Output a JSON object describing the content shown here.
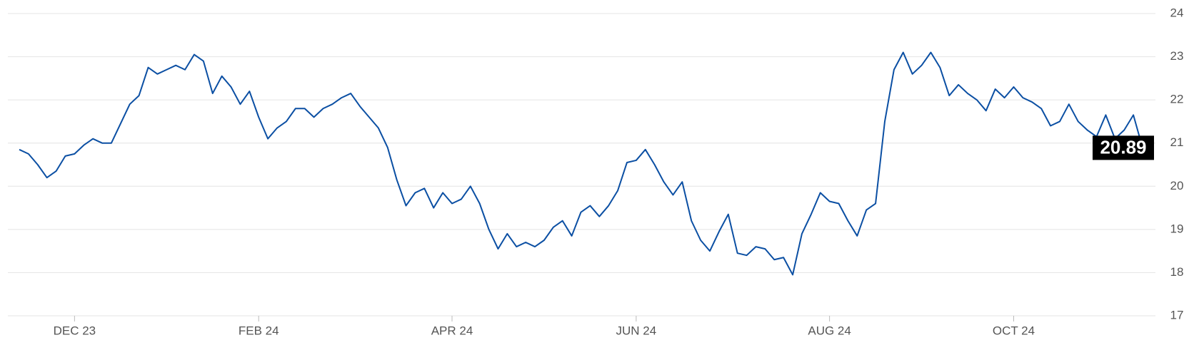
{
  "chart_data": {
    "type": "line",
    "categories": [
      null,
      null,
      null,
      null,
      null,
      null,
      "DEC 23",
      null,
      null,
      null,
      null,
      null,
      null,
      null,
      null,
      null,
      null,
      null,
      null,
      null,
      null,
      null,
      null,
      null,
      null,
      null,
      "FEB 24",
      null,
      null,
      null,
      null,
      null,
      null,
      null,
      null,
      null,
      null,
      null,
      null,
      null,
      null,
      null,
      null,
      null,
      null,
      null,
      null,
      "APR 24",
      null,
      null,
      null,
      null,
      null,
      null,
      null,
      null,
      null,
      null,
      null,
      null,
      null,
      null,
      null,
      null,
      null,
      null,
      null,
      "JUN 24",
      null,
      null,
      null,
      null,
      null,
      null,
      null,
      null,
      null,
      null,
      null,
      null,
      null,
      null,
      null,
      null,
      null,
      null,
      null,
      null,
      "AUG 24",
      null,
      null,
      null,
      null,
      null,
      null,
      null,
      null,
      null,
      null,
      null,
      null,
      null,
      null,
      null,
      null,
      null,
      null,
      null,
      "OCT 24",
      null,
      null,
      null,
      null,
      null,
      null,
      null,
      null,
      null,
      null,
      null,
      null,
      null,
      null
    ],
    "values": [
      20.85,
      20.75,
      20.5,
      20.2,
      20.35,
      20.7,
      20.75,
      20.95,
      21.1,
      21.0,
      21.0,
      21.45,
      21.9,
      22.1,
      22.75,
      22.6,
      22.7,
      22.8,
      22.7,
      23.05,
      22.9,
      22.15,
      22.55,
      22.3,
      21.9,
      22.2,
      21.6,
      21.1,
      21.35,
      21.5,
      21.8,
      21.8,
      21.6,
      21.8,
      21.9,
      22.05,
      22.15,
      21.85,
      21.6,
      21.35,
      20.9,
      20.15,
      19.55,
      19.85,
      19.95,
      19.5,
      19.85,
      19.6,
      19.7,
      20.0,
      19.6,
      19.0,
      18.55,
      18.9,
      18.6,
      18.7,
      18.6,
      18.75,
      19.05,
      19.2,
      18.85,
      19.4,
      19.55,
      19.3,
      19.55,
      19.9,
      20.55,
      20.6,
      20.85,
      20.5,
      20.1,
      19.8,
      20.1,
      19.2,
      18.75,
      18.5,
      18.95,
      19.35,
      18.45,
      18.4,
      18.6,
      18.55,
      18.3,
      18.35,
      17.95,
      18.9,
      19.35,
      19.85,
      19.65,
      19.6,
      19.2,
      18.85,
      19.45,
      19.6,
      21.5,
      22.7,
      23.1,
      22.6,
      22.8,
      23.1,
      22.75,
      22.1,
      22.35,
      22.15,
      22.0,
      21.75,
      22.25,
      22.05,
      22.3,
      22.05,
      21.95,
      21.8,
      21.4,
      21.5,
      21.9,
      21.5,
      21.3,
      21.15,
      21.65,
      21.1,
      21.3,
      21.65,
      20.89
    ],
    "color": "#0b4fa3",
    "ylim": [
      17,
      24
    ],
    "yticks": [
      17,
      18,
      19,
      20,
      21,
      22,
      23,
      24
    ],
    "grid": true
  }
}
